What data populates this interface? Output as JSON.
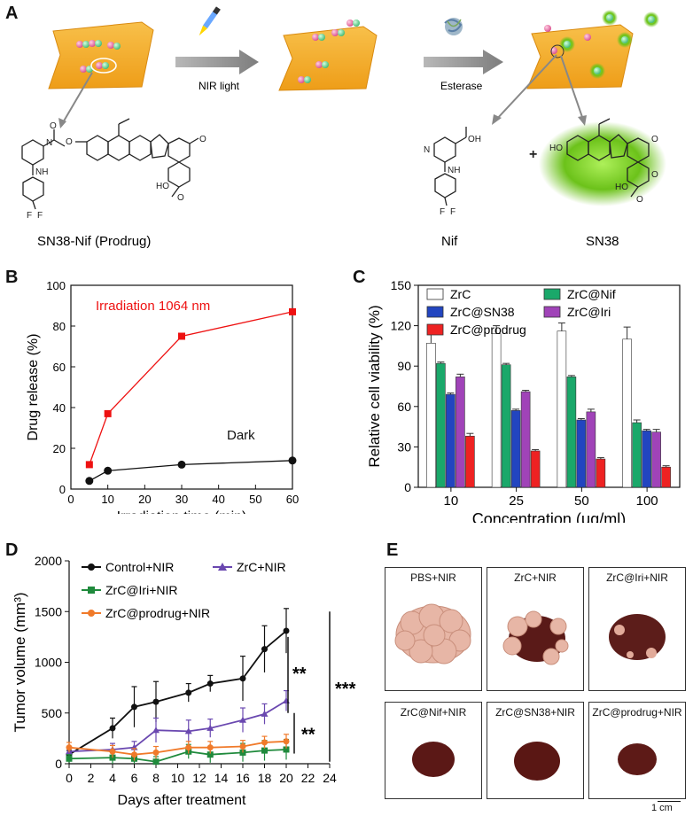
{
  "panels": {
    "a": {
      "label": "A",
      "arrow1_label": "NIR light",
      "arrow2_label": "Esterase",
      "prodrug_label": "SN38-Nif (Prodrug)",
      "nif_label": "Nif",
      "sn38_label": "SN38",
      "plus": "+",
      "atoms": {
        "N": "N",
        "NH": "NH",
        "O": "O",
        "OH": "OH",
        "HO": "HO",
        "F": "F"
      }
    },
    "b": {
      "label": "B"
    },
    "c": {
      "label": "C"
    },
    "d": {
      "label": "D",
      "sig1": "**",
      "sig2": "**",
      "sig3": "***"
    },
    "e": {
      "label": "E",
      "photos": [
        "PBS+NIR",
        "ZrC+NIR",
        "ZrC@Iri+NIR",
        "ZrC@Nif+NIR",
        "ZrC@SN38+NIR",
        "ZrC@prodrug+NIR"
      ],
      "scale_bar": "1 cm"
    }
  },
  "chart_data": [
    {
      "id": "B",
      "type": "line",
      "xlabel": "Irradiation time (min)",
      "ylabel": "Drug release (%)",
      "xlim": [
        0,
        60
      ],
      "ylim": [
        0,
        100
      ],
      "xticks": [
        0,
        10,
        20,
        30,
        40,
        50,
        60
      ],
      "yticks": [
        0,
        20,
        40,
        60,
        80,
        100
      ],
      "series": [
        {
          "name": "Irradiation 1064 nm",
          "color": "#ee1111",
          "x": [
            5,
            10,
            30,
            60
          ],
          "y": [
            12,
            37,
            75,
            87
          ]
        },
        {
          "name": "Dark",
          "color": "#111111",
          "x": [
            5,
            10,
            30,
            60
          ],
          "y": [
            4,
            9,
            12,
            14
          ]
        }
      ]
    },
    {
      "id": "C",
      "type": "bar",
      "xlabel": "Concentration (μg/ml)",
      "ylabel": "Relative cell viability (%)",
      "ylim": [
        0,
        150
      ],
      "yticks": [
        0,
        30,
        60,
        90,
        120,
        150
      ],
      "categories": [
        "10",
        "25",
        "50",
        "100"
      ],
      "series": [
        {
          "name": "ZrC",
          "color": "#ffffff",
          "values": [
            107,
            114,
            116,
            110
          ],
          "err": [
            8,
            6,
            6,
            9
          ]
        },
        {
          "name": "ZrC@Nif",
          "color": "#1aa86a",
          "values": [
            92,
            91,
            82,
            48
          ],
          "err": [
            1,
            1,
            1,
            2
          ]
        },
        {
          "name": "ZrC@SN38",
          "color": "#2245c0",
          "values": [
            69,
            57,
            50,
            42
          ],
          "err": [
            1,
            1,
            1,
            1
          ]
        },
        {
          "name": "ZrC@Iri",
          "color": "#a043b8",
          "values": [
            82,
            71,
            56,
            41
          ],
          "err": [
            2,
            1,
            2,
            2
          ]
        },
        {
          "name": "ZrC@prodrug",
          "color": "#ee2222",
          "values": [
            38,
            27,
            21,
            15
          ],
          "err": [
            2,
            1,
            1,
            1
          ]
        }
      ]
    },
    {
      "id": "D",
      "type": "line",
      "xlabel": "Days after treatment",
      "ylabel": "Tumor volume (mm³)",
      "xlim": [
        0,
        24
      ],
      "ylim": [
        0,
        2000
      ],
      "xticks": [
        0,
        2,
        4,
        6,
        8,
        10,
        12,
        14,
        16,
        18,
        20,
        22,
        24
      ],
      "yticks": [
        0,
        500,
        1000,
        1500,
        2000
      ],
      "series": [
        {
          "name": "Control+NIR",
          "color": "#111111",
          "x": [
            0,
            4,
            6,
            8,
            11,
            13,
            16,
            18,
            20
          ],
          "y": [
            90,
            350,
            560,
            610,
            700,
            790,
            840,
            1130,
            1310
          ],
          "err": [
            40,
            100,
            200,
            200,
            90,
            80,
            220,
            230,
            220
          ]
        },
        {
          "name": "ZrC+NIR",
          "color": "#6a48b0",
          "x": [
            0,
            4,
            6,
            8,
            11,
            13,
            16,
            18,
            20
          ],
          "y": [
            120,
            140,
            160,
            330,
            320,
            350,
            430,
            490,
            620
          ],
          "err": [
            40,
            60,
            60,
            120,
            110,
            90,
            120,
            100,
            100
          ]
        },
        {
          "name": "ZrC@Iri+NIR",
          "color": "#1f8a3c",
          "x": [
            0,
            4,
            6,
            8,
            11,
            13,
            16,
            18,
            20
          ],
          "y": [
            50,
            60,
            50,
            20,
            120,
            90,
            110,
            130,
            140
          ],
          "err": [
            40,
            60,
            50,
            50,
            70,
            80,
            90,
            100,
            100
          ]
        },
        {
          "name": "ZrC@prodrug+NIR",
          "color": "#f07a2a",
          "x": [
            0,
            4,
            6,
            8,
            11,
            13,
            16,
            18,
            20
          ],
          "y": [
            160,
            120,
            90,
            110,
            160,
            160,
            170,
            210,
            220
          ],
          "err": [
            50,
            60,
            60,
            60,
            60,
            60,
            60,
            60,
            70
          ]
        }
      ]
    }
  ],
  "colors": {
    "cell": "#f5b330",
    "cell_edge": "#e39a16",
    "arrow": "#808080",
    "glow": "#7ad21e"
  }
}
